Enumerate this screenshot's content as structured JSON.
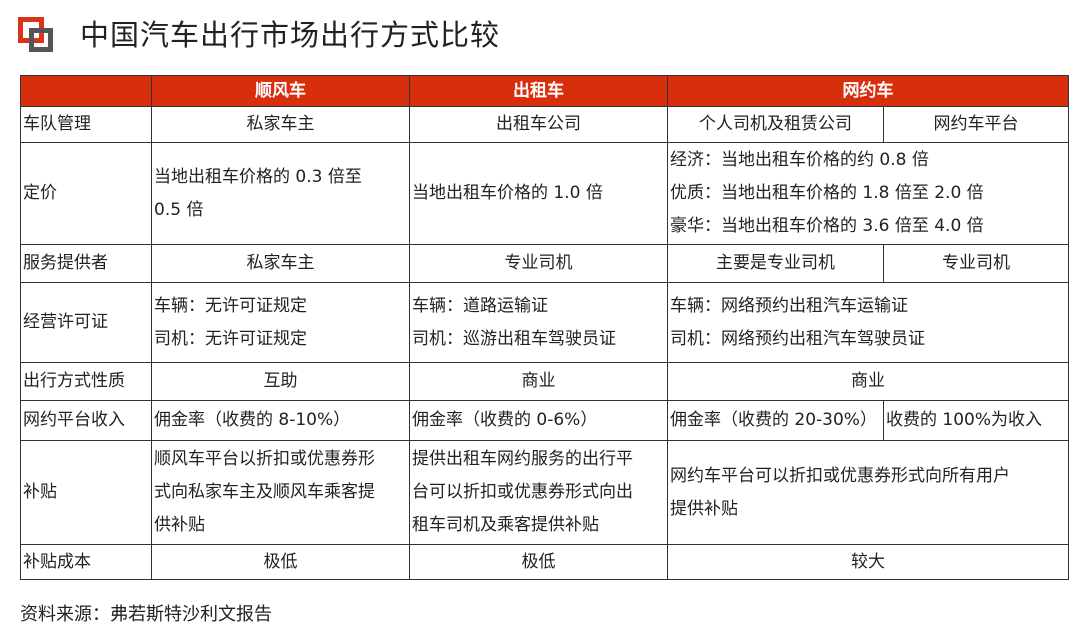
{
  "title": "中国汽车出行市场出行方式比较",
  "accent": "#d72e0e",
  "header": [
    "",
    "顺风车",
    "出租车",
    "网约车"
  ],
  "rows": {
    "fleet": {
      "label": "车队管理",
      "shunfeng": "私家车主",
      "taxi": "出租车公司",
      "wyc_a": "个人司机及租赁公司",
      "wyc_b": "网约车平台"
    },
    "pricing": {
      "label": "定价",
      "shunfeng": [
        "当地出租车价格的 0.3 倍至",
        "0.5 倍"
      ],
      "taxi": "当地出租车价格的 1.0 倍",
      "wyc": [
        "经济：当地出租车价格的约 0.8 倍",
        "优质：当地出租车价格的 1.8 倍至 2.0 倍",
        "豪华：当地出租车价格的 3.6 倍至 4.0 倍"
      ]
    },
    "provider": {
      "label": "服务提供者",
      "shunfeng": "私家车主",
      "taxi": "专业司机",
      "wyc_a": "主要是专业司机",
      "wyc_b": "专业司机"
    },
    "license": {
      "label": "经营许可证",
      "shunfeng": [
        "车辆：无许可证规定",
        "司机：无许可证规定"
      ],
      "taxi": [
        "车辆：道路运输证",
        "司机：巡游出租车驾驶员证"
      ],
      "wyc": [
        "车辆：网络预约出租汽车运输证",
        "司机：网络预约出租汽车驾驶员证"
      ]
    },
    "nature": {
      "label": "出行方式性质",
      "shunfeng": "互助",
      "taxi": "商业",
      "wyc": "商业"
    },
    "revenue": {
      "label": "网约平台收入",
      "shunfeng": "佣金率（收费的 8-10%）",
      "taxi": "佣金率（收费的 0-6%）",
      "wyc_a": "佣金率（收费的 20-30%）",
      "wyc_b": "收费的 100%为收入"
    },
    "subsidy": {
      "label": "补贴",
      "shunfeng": [
        "顺风车平台以折扣或优惠券形",
        "式向私家车主及顺风车乘客提",
        "供补贴"
      ],
      "taxi": [
        "提供出租车网约服务的出行平",
        "台可以折扣或优惠券形式向出",
        "租车司机及乘客提供补贴"
      ],
      "wyc": [
        "网约车平台可以折扣或优惠券形式向所有用户",
        "提供补贴"
      ]
    },
    "cost": {
      "label": "补贴成本",
      "shunfeng": "极低",
      "taxi": "极低",
      "wyc": "较大"
    }
  },
  "source": "资料来源：弗若斯特沙利文报告"
}
